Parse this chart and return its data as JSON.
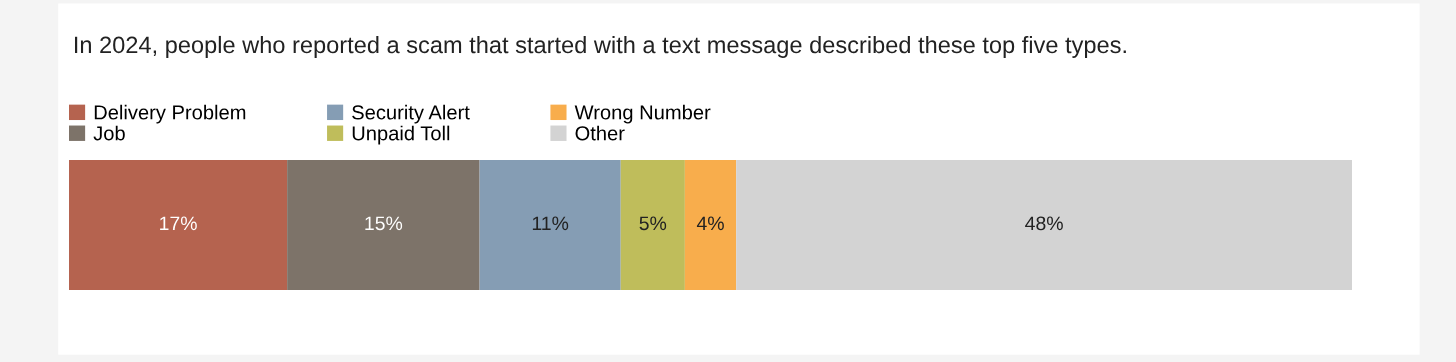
{
  "chart_data": {
    "type": "bar",
    "title": "In 2024, people who reported a scam that started with a text message described these top five types.",
    "orientation": "horizontal",
    "stacked": true,
    "tick_labels": false,
    "data_labels": true,
    "legend": "top left",
    "categories": [
      null
    ],
    "series": [
      {
        "name": "Delivery Problem",
        "color": "#b5634f",
        "values": [
          17
        ],
        "value_labels": [
          "17%"
        ]
      },
      {
        "name": "Job",
        "color": "#7d7369",
        "values": [
          15
        ],
        "value_labels": [
          "15%"
        ]
      },
      {
        "name": "Security Alert",
        "color": "#859db4",
        "values": [
          11
        ],
        "value_labels": [
          "11%"
        ]
      },
      {
        "name": "Unpaid Toll",
        "color": "#bfbd5b",
        "values": [
          5
        ],
        "value_labels": [
          "5%"
        ]
      },
      {
        "name": "Wrong Number",
        "color": "#f8ad4c",
        "values": [
          4
        ],
        "value_labels": [
          "4%"
        ]
      },
      {
        "name": "Other",
        "color": "#d3d3d3",
        "values": [
          48
        ],
        "value_labels": [
          "48%"
        ]
      }
    ]
  }
}
